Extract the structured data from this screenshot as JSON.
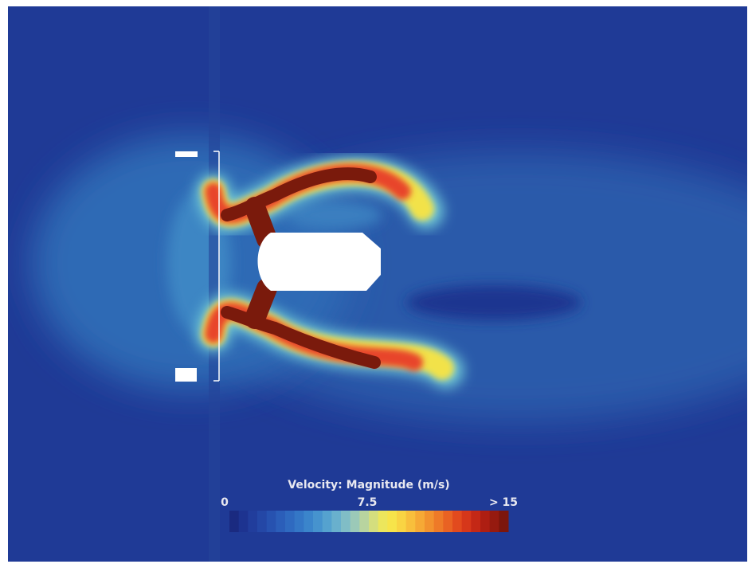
{
  "legend": {
    "title": "Velocity: Magnitude (m/s)",
    "labels": [
      "0",
      "7.5",
      "> 15"
    ]
  }
}
